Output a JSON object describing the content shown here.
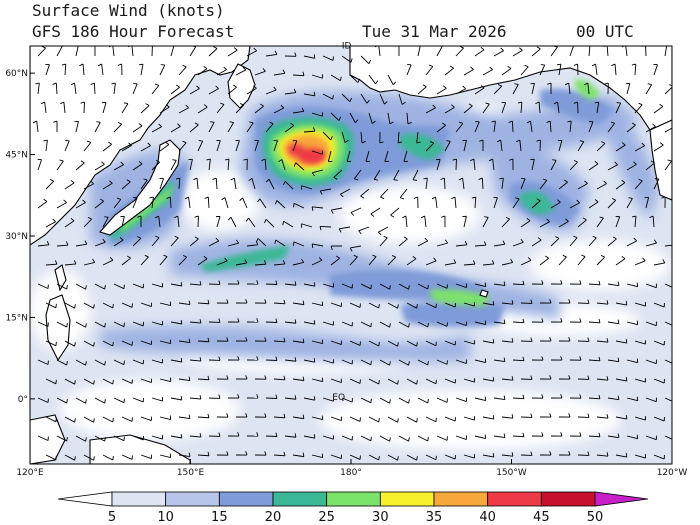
{
  "header": {
    "line1": "Surface Wind (knots)",
    "line2_left": "GFS 186 Hour Forecast",
    "date": "Tue 31 Mar 2026",
    "time": "00 UTC"
  },
  "map": {
    "projection": "cylindrical",
    "lon_range": [
      120,
      240
    ],
    "lat_range": [
      -12,
      65
    ],
    "lat_labels": [
      "60°N",
      "45°N",
      "30°N",
      "15°N",
      "0°"
    ],
    "lat_values": [
      60,
      45,
      30,
      15,
      0
    ],
    "lon_labels": [
      "120°E",
      "150°E",
      "180°",
      "150°W",
      "120°W"
    ],
    "lon_values": [
      120,
      150,
      180,
      210,
      240
    ],
    "annotations": [
      {
        "text": "ID",
        "lon": 178.3,
        "lat": 64.5
      },
      {
        "text": "EQ",
        "lon": 176.5,
        "lat": -0.2
      }
    ]
  },
  "legend": {
    "labels": [
      "5",
      "10",
      "15",
      "20",
      "25",
      "30",
      "35",
      "40",
      "45",
      "50"
    ],
    "colors": [
      "#ffffff",
      "#dde4f2",
      "#b7c5ea",
      "#7f9bd9",
      "#3bb895",
      "#7be26a",
      "#f7f12c",
      "#f8a73a",
      "#ee3946",
      "#c8102e",
      "#c81fc8"
    ]
  },
  "colors": {
    "calm": "#ffffff",
    "light": "#c9d3ee",
    "land": "#ffffff",
    "coast": "#000000",
    "barb": "#000000"
  }
}
